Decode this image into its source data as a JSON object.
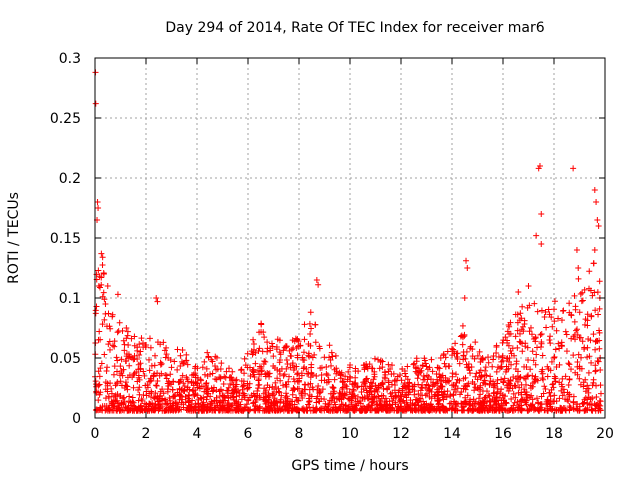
{
  "chart_data": {
    "type": "scatter",
    "title": "Day 294 of 2014, Rate Of TEC Index for receiver mar6",
    "xlabel": "GPS time / hours",
    "ylabel": "ROTI / TECUs",
    "xlim": [
      0,
      20
    ],
    "ylim": [
      0,
      0.3
    ],
    "x_ticks": [
      0,
      2,
      4,
      6,
      8,
      10,
      12,
      14,
      16,
      18,
      20
    ],
    "x_tick_labels": [
      "0",
      "2",
      "4",
      "6",
      "8",
      "10",
      "12",
      "14",
      "16",
      "18",
      "20"
    ],
    "y_ticks": [
      0,
      0.05,
      0.1,
      0.15,
      0.2,
      0.25,
      0.3
    ],
    "y_tick_labels": [
      "0",
      "0.05",
      "0.1",
      "0.15",
      "0.2",
      "0.25",
      "0.3"
    ],
    "grid": true,
    "marker": "+",
    "marker_color": "#ff0000",
    "series": [
      {
        "name": "ROTI",
        "envelope": [
          {
            "x": 0.0,
            "y": 0.12
          },
          {
            "x": 0.3,
            "y": 0.13
          },
          {
            "x": 0.6,
            "y": 0.09
          },
          {
            "x": 1.0,
            "y": 0.08
          },
          {
            "x": 1.5,
            "y": 0.07
          },
          {
            "x": 2.0,
            "y": 0.07
          },
          {
            "x": 2.5,
            "y": 0.065
          },
          {
            "x": 3.0,
            "y": 0.06
          },
          {
            "x": 3.5,
            "y": 0.06
          },
          {
            "x": 4.0,
            "y": 0.045
          },
          {
            "x": 4.5,
            "y": 0.06
          },
          {
            "x": 5.0,
            "y": 0.045
          },
          {
            "x": 5.5,
            "y": 0.04
          },
          {
            "x": 6.0,
            "y": 0.06
          },
          {
            "x": 6.5,
            "y": 0.08
          },
          {
            "x": 7.0,
            "y": 0.07
          },
          {
            "x": 7.5,
            "y": 0.06
          },
          {
            "x": 8.0,
            "y": 0.07
          },
          {
            "x": 8.5,
            "y": 0.09
          },
          {
            "x": 9.0,
            "y": 0.07
          },
          {
            "x": 9.5,
            "y": 0.05
          },
          {
            "x": 10.0,
            "y": 0.045
          },
          {
            "x": 10.5,
            "y": 0.045
          },
          {
            "x": 11.0,
            "y": 0.05
          },
          {
            "x": 11.5,
            "y": 0.05
          },
          {
            "x": 12.0,
            "y": 0.04
          },
          {
            "x": 12.5,
            "y": 0.05
          },
          {
            "x": 13.0,
            "y": 0.05
          },
          {
            "x": 13.5,
            "y": 0.05
          },
          {
            "x": 14.0,
            "y": 0.06
          },
          {
            "x": 14.5,
            "y": 0.08
          },
          {
            "x": 15.0,
            "y": 0.06
          },
          {
            "x": 15.5,
            "y": 0.055
          },
          {
            "x": 16.0,
            "y": 0.07
          },
          {
            "x": 16.5,
            "y": 0.09
          },
          {
            "x": 17.0,
            "y": 0.1
          },
          {
            "x": 17.5,
            "y": 0.11
          },
          {
            "x": 18.0,
            "y": 0.1
          },
          {
            "x": 18.5,
            "y": 0.09
          },
          {
            "x": 19.0,
            "y": 0.12
          },
          {
            "x": 19.5,
            "y": 0.13
          },
          {
            "x": 19.8,
            "y": 0.13
          }
        ],
        "points": [
          {
            "x": 0.02,
            "y": 0.288
          },
          {
            "x": 0.03,
            "y": 0.262
          },
          {
            "x": 0.1,
            "y": 0.18
          },
          {
            "x": 0.12,
            "y": 0.175
          },
          {
            "x": 0.08,
            "y": 0.165
          },
          {
            "x": 0.25,
            "y": 0.137
          },
          {
            "x": 0.3,
            "y": 0.134
          },
          {
            "x": 0.35,
            "y": 0.12
          },
          {
            "x": 0.5,
            "y": 0.11
          },
          {
            "x": 0.9,
            "y": 0.103
          },
          {
            "x": 2.4,
            "y": 0.1
          },
          {
            "x": 2.45,
            "y": 0.097
          },
          {
            "x": 8.7,
            "y": 0.115
          },
          {
            "x": 8.75,
            "y": 0.111
          },
          {
            "x": 14.55,
            "y": 0.131
          },
          {
            "x": 14.6,
            "y": 0.125
          },
          {
            "x": 14.5,
            "y": 0.1
          },
          {
            "x": 16.6,
            "y": 0.105
          },
          {
            "x": 17.0,
            "y": 0.11
          },
          {
            "x": 17.3,
            "y": 0.152
          },
          {
            "x": 17.4,
            "y": 0.208
          },
          {
            "x": 17.45,
            "y": 0.21
          },
          {
            "x": 17.5,
            "y": 0.17
          },
          {
            "x": 17.5,
            "y": 0.145
          },
          {
            "x": 18.75,
            "y": 0.208
          },
          {
            "x": 18.9,
            "y": 0.14
          },
          {
            "x": 18.95,
            "y": 0.125
          },
          {
            "x": 19.6,
            "y": 0.19
          },
          {
            "x": 19.65,
            "y": 0.18
          },
          {
            "x": 19.7,
            "y": 0.165
          },
          {
            "x": 19.75,
            "y": 0.16
          },
          {
            "x": 19.6,
            "y": 0.14
          },
          {
            "x": 19.8,
            "y": 0.1
          }
        ]
      }
    ]
  }
}
